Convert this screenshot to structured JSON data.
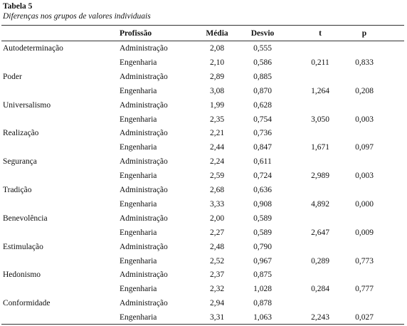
{
  "title": "Tabela 5",
  "subtitle": "Diferenças nos grupos de valores individuais",
  "table": {
    "header": [
      "Profissão",
      "Média",
      "Desvio",
      "t",
      "p"
    ],
    "groups": [
      {
        "name": "Autodeterminação",
        "rows": [
          {
            "label": "Administração",
            "values": [
              "2,08",
              "0,555"
            ]
          },
          {
            "label": "Engenharia",
            "values": [
              "2,10",
              "0,586",
              "0,211",
              "0,833"
            ]
          }
        ]
      },
      {
        "name": "Poder",
        "rows": [
          {
            "label": "Administração",
            "values": [
              "2,89",
              "0,885"
            ]
          },
          {
            "label": "Engenharia",
            "values": [
              "3,08",
              "0,870",
              "1,264",
              "0,208"
            ]
          }
        ]
      },
      {
        "name": "Universalismo",
        "rows": [
          {
            "label": "Administração",
            "values": [
              "1,99",
              "0,628"
            ]
          },
          {
            "label": "Engenharia",
            "values": [
              "2,35",
              "0,754",
              "3,050",
              "0,003"
            ]
          }
        ]
      },
      {
        "name": "Realização",
        "rows": [
          {
            "label": "Administração",
            "values": [
              "2,21",
              "0,736"
            ]
          },
          {
            "label": "Engenharia",
            "values": [
              "2,44",
              "0,847",
              "1,671",
              "0,097"
            ]
          }
        ]
      },
      {
        "name": "Segurança",
        "rows": [
          {
            "label": "Administração",
            "values": [
              "2,24",
              "0,611"
            ]
          },
          {
            "label": "Engenharia",
            "values": [
              "2,59",
              "0,724",
              "2,989",
              "0,003"
            ]
          }
        ]
      },
      {
        "name": "Tradição",
        "rows": [
          {
            "label": "Administração",
            "values": [
              "2,68",
              "0,636"
            ]
          },
          {
            "label": "Engenharia",
            "values": [
              "3,33",
              "0,908",
              "4,892",
              "0,000"
            ]
          }
        ]
      },
      {
        "name": "Benevolência",
        "rows": [
          {
            "label": "Administração",
            "values": [
              "2,00",
              "0,589"
            ]
          },
          {
            "label": "Engenharia",
            "values": [
              "2,27",
              "0,589",
              "2,647",
              "0,009"
            ]
          }
        ]
      },
      {
        "name": "Estimulação",
        "rows": [
          {
            "label": "Administração",
            "values": [
              "2,48",
              "0,790"
            ]
          },
          {
            "label": "Engenharia",
            "values": [
              "2,52",
              "0,967",
              "0,289",
              "0,773"
            ]
          }
        ]
      },
      {
        "name": "Hedonismo",
        "rows": [
          {
            "label": "Administração",
            "values": [
              "2,37",
              "0,875"
            ]
          },
          {
            "label": "Engenharia",
            "values": [
              "2,32",
              "1,028",
              "0,284",
              "0,777"
            ]
          }
        ]
      },
      {
        "name": "Conformidade",
        "rows": [
          {
            "label": "Administração",
            "values": [
              "2,94",
              "0,878"
            ]
          },
          {
            "label": "Engenharia",
            "values": [
              "3,31",
              "1,063",
              "2,243",
              "0,027"
            ]
          }
        ]
      }
    ]
  }
}
